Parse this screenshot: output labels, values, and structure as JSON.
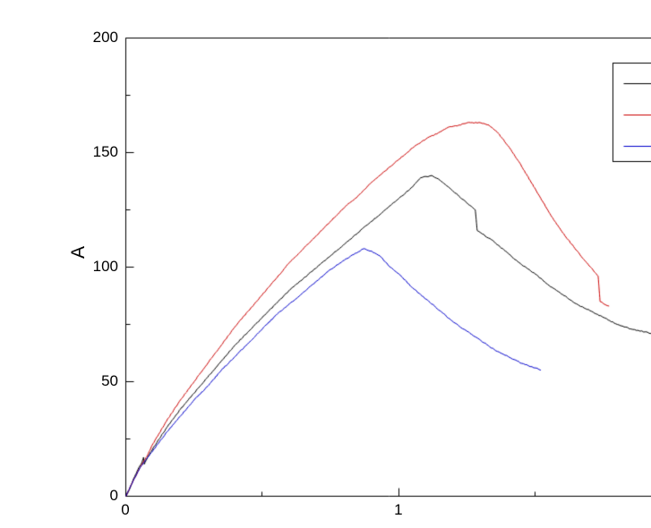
{
  "chart_data": {
    "type": "line",
    "title": "",
    "xlabel": "",
    "ylabel": "A",
    "xlim": [
      0,
      2.04
    ],
    "ylim": [
      0,
      200
    ],
    "grid": false,
    "background": "#ffffff",
    "axis_color": "#000000",
    "x_ticks": [
      {
        "value": 0,
        "label": "0"
      },
      {
        "value": 1,
        "label": "1"
      }
    ],
    "x_minor_ticks": [
      0.5,
      1.5,
      2.0
    ],
    "y_ticks": [
      {
        "value": 0,
        "label": "0"
      },
      {
        "value": 50,
        "label": "50"
      },
      {
        "value": 100,
        "label": "100"
      },
      {
        "value": 150,
        "label": "150"
      },
      {
        "value": 200,
        "label": "200"
      }
    ],
    "y_minor_ticks": [
      25,
      75,
      125,
      175
    ],
    "legend": {
      "position": "top-right",
      "border": true,
      "labels_cut_off": true,
      "entries": [
        {
          "label": "",
          "color": "#000000"
        },
        {
          "label": "",
          "color": "#cc0000"
        },
        {
          "label": "",
          "color": "#0000cc"
        }
      ]
    },
    "series": [
      {
        "name": "black-curve",
        "color": "#000000",
        "points": [
          [
            0,
            0
          ],
          [
            0.01,
            2
          ],
          [
            0.03,
            8
          ],
          [
            0.05,
            13
          ],
          [
            0.06,
            15
          ],
          [
            0.065,
            17
          ],
          [
            0.068,
            14
          ],
          [
            0.08,
            17
          ],
          [
            0.1,
            21
          ],
          [
            0.15,
            30
          ],
          [
            0.2,
            38
          ],
          [
            0.25,
            45
          ],
          [
            0.3,
            52
          ],
          [
            0.35,
            59
          ],
          [
            0.4,
            66
          ],
          [
            0.45,
            72
          ],
          [
            0.5,
            78
          ],
          [
            0.55,
            84
          ],
          [
            0.6,
            90
          ],
          [
            0.65,
            95
          ],
          [
            0.7,
            100
          ],
          [
            0.75,
            105
          ],
          [
            0.8,
            110
          ],
          [
            0.85,
            115
          ],
          [
            0.9,
            120
          ],
          [
            0.95,
            125
          ],
          [
            1.0,
            130
          ],
          [
            1.05,
            135
          ],
          [
            1.08,
            139
          ],
          [
            1.12,
            140
          ],
          [
            1.15,
            138
          ],
          [
            1.2,
            133
          ],
          [
            1.25,
            128
          ],
          [
            1.28,
            125
          ],
          [
            1.287,
            116
          ],
          [
            1.3,
            115
          ],
          [
            1.35,
            111
          ],
          [
            1.4,
            106
          ],
          [
            1.45,
            101
          ],
          [
            1.5,
            97
          ],
          [
            1.55,
            92
          ],
          [
            1.6,
            88
          ],
          [
            1.65,
            84
          ],
          [
            1.7,
            81
          ],
          [
            1.75,
            78
          ],
          [
            1.8,
            75
          ],
          [
            1.85,
            73
          ],
          [
            1.93,
            71
          ]
        ]
      },
      {
        "name": "red-curve",
        "color": "#cc0000",
        "points": [
          [
            0,
            0
          ],
          [
            0.02,
            5
          ],
          [
            0.05,
            12
          ],
          [
            0.08,
            18
          ],
          [
            0.1,
            23
          ],
          [
            0.15,
            33
          ],
          [
            0.2,
            42
          ],
          [
            0.25,
            50
          ],
          [
            0.3,
            58
          ],
          [
            0.35,
            66
          ],
          [
            0.4,
            74
          ],
          [
            0.45,
            81
          ],
          [
            0.5,
            88
          ],
          [
            0.55,
            95
          ],
          [
            0.6,
            102
          ],
          [
            0.65,
            108
          ],
          [
            0.7,
            114
          ],
          [
            0.75,
            120
          ],
          [
            0.8,
            126
          ],
          [
            0.85,
            131
          ],
          [
            0.9,
            137
          ],
          [
            0.95,
            142
          ],
          [
            1.0,
            147
          ],
          [
            1.05,
            152
          ],
          [
            1.1,
            156
          ],
          [
            1.15,
            159
          ],
          [
            1.18,
            161
          ],
          [
            1.22,
            162
          ],
          [
            1.25,
            163
          ],
          [
            1.3,
            163
          ],
          [
            1.33,
            162
          ],
          [
            1.36,
            159
          ],
          [
            1.4,
            153
          ],
          [
            1.44,
            146
          ],
          [
            1.48,
            138
          ],
          [
            1.52,
            130
          ],
          [
            1.56,
            122
          ],
          [
            1.6,
            115
          ],
          [
            1.64,
            109
          ],
          [
            1.68,
            103
          ],
          [
            1.71,
            99
          ],
          [
            1.73,
            96
          ],
          [
            1.737,
            85
          ],
          [
            1.75,
            84
          ],
          [
            1.77,
            83
          ]
        ]
      },
      {
        "name": "blue-curve",
        "color": "#0000cc",
        "points": [
          [
            0,
            0
          ],
          [
            0.02,
            5
          ],
          [
            0.05,
            12
          ],
          [
            0.08,
            17
          ],
          [
            0.1,
            20
          ],
          [
            0.15,
            28
          ],
          [
            0.2,
            35
          ],
          [
            0.25,
            42
          ],
          [
            0.3,
            48
          ],
          [
            0.35,
            55
          ],
          [
            0.4,
            61
          ],
          [
            0.45,
            67
          ],
          [
            0.5,
            73
          ],
          [
            0.55,
            79
          ],
          [
            0.6,
            84
          ],
          [
            0.65,
            89
          ],
          [
            0.7,
            94
          ],
          [
            0.75,
            99
          ],
          [
            0.8,
            103
          ],
          [
            0.84,
            106
          ],
          [
            0.87,
            108
          ],
          [
            0.9,
            107
          ],
          [
            0.93,
            105
          ],
          [
            0.96,
            101
          ],
          [
            1.0,
            97
          ],
          [
            1.05,
            91
          ],
          [
            1.1,
            86
          ],
          [
            1.15,
            81
          ],
          [
            1.2,
            76
          ],
          [
            1.25,
            72
          ],
          [
            1.3,
            68
          ],
          [
            1.35,
            64
          ],
          [
            1.4,
            61
          ],
          [
            1.45,
            58
          ],
          [
            1.5,
            56
          ],
          [
            1.52,
            55
          ]
        ]
      }
    ]
  }
}
